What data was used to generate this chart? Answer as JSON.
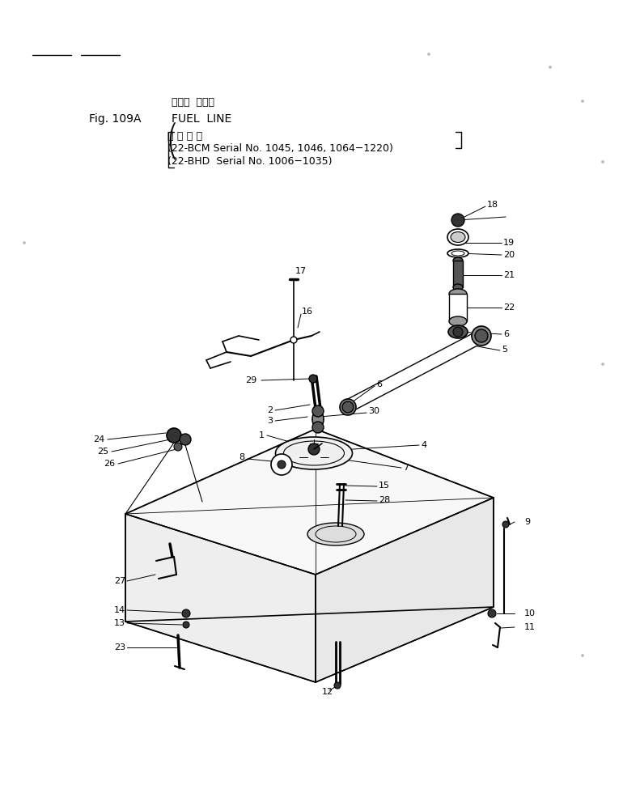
{
  "title_jp": "フェル  ライン",
  "title_en": "FUEL  LINE",
  "fig_label": "Fig. 109A",
  "subtitle_jp": "適 用 号 機",
  "line1": "(22-BCM Serial No. 1045, 1046, 1064−1220)",
  "line2": "(22-BHD  Serial No. 1006−1035)",
  "bg_color": "#ffffff",
  "line_color": "#000000",
  "text_color": "#000000",
  "figsize": [
    7.91,
    9.91
  ],
  "dpi": 100
}
